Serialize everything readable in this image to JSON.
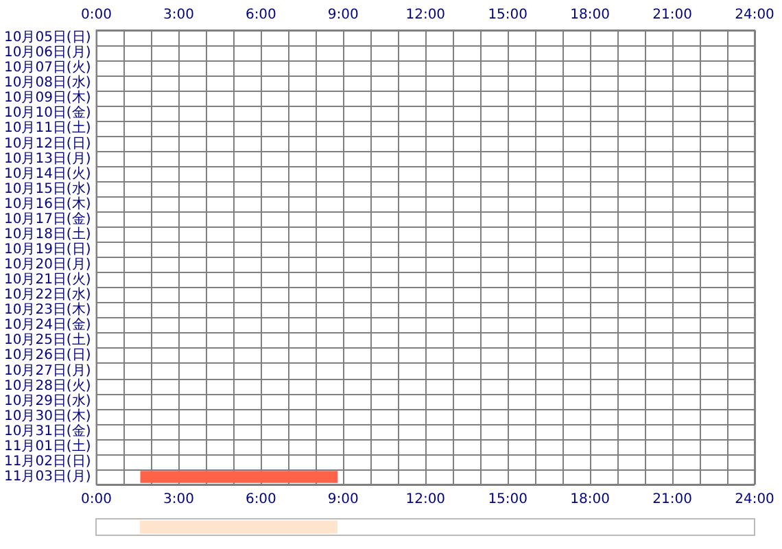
{
  "chart_data": [
    {
      "type": "bar",
      "orientation": "horizontal",
      "grid": true,
      "categories": [
        "10月05日(日)",
        "10月06日(月)",
        "10月07日(火)",
        "10月08日(水)",
        "10月09日(木)",
        "10月10日(金)",
        "10月11日(土)",
        "10月12日(日)",
        "10月13日(月)",
        "10月14日(火)",
        "10月15日(水)",
        "10月16日(木)",
        "10月17日(金)",
        "10月18日(土)",
        "10月19日(日)",
        "10月20日(月)",
        "10月21日(火)",
        "10月22日(水)",
        "10月23日(木)",
        "10月24日(金)",
        "10月25日(土)",
        "10月26日(日)",
        "10月27日(月)",
        "10月28日(火)",
        "10月29日(水)",
        "10月30日(木)",
        "10月31日(金)",
        "11月01日(土)",
        "11月02日(日)",
        "11月03日(月)"
      ],
      "values": [
        null,
        null,
        null,
        null,
        null,
        null,
        null,
        null,
        null,
        null,
        null,
        null,
        null,
        null,
        null,
        null,
        null,
        null,
        null,
        null,
        null,
        null,
        null,
        null,
        null,
        null,
        null,
        null,
        null,
        7.2
      ],
      "base": [
        null,
        null,
        null,
        null,
        null,
        null,
        null,
        null,
        null,
        null,
        null,
        null,
        null,
        null,
        null,
        null,
        null,
        null,
        null,
        null,
        null,
        null,
        null,
        null,
        null,
        null,
        null,
        null,
        null,
        1.6
      ],
      "color": "#ff6347",
      "xlim": [
        0,
        24
      ],
      "xticks": [
        {
          "value": 0,
          "label": "0:00"
        },
        {
          "value": 1,
          "label": null
        },
        {
          "value": 2,
          "label": null
        },
        {
          "value": 3,
          "label": "3:00"
        },
        {
          "value": 4,
          "label": null
        },
        {
          "value": 5,
          "label": null
        },
        {
          "value": 6,
          "label": "6:00"
        },
        {
          "value": 7,
          "label": null
        },
        {
          "value": 8,
          "label": null
        },
        {
          "value": 9,
          "label": "9:00"
        },
        {
          "value": 10,
          "label": null
        },
        {
          "value": 11,
          "label": null
        },
        {
          "value": 12,
          "label": "12:00"
        },
        {
          "value": 13,
          "label": null
        },
        {
          "value": 14,
          "label": null
        },
        {
          "value": 15,
          "label": "15:00"
        },
        {
          "value": 16,
          "label": null
        },
        {
          "value": 17,
          "label": null
        },
        {
          "value": 18,
          "label": "18:00"
        },
        {
          "value": 19,
          "label": null
        },
        {
          "value": 20,
          "label": null
        },
        {
          "value": 21,
          "label": "21:00"
        },
        {
          "value": 22,
          "label": null
        },
        {
          "value": 23,
          "label": null
        },
        {
          "value": 24,
          "label": "24:00"
        }
      ],
      "x2lim": [
        0,
        24
      ],
      "x2ticks": [
        {
          "value": 0,
          "label": "0:00"
        },
        {
          "value": 1,
          "label": null
        },
        {
          "value": 2,
          "label": null
        },
        {
          "value": 3,
          "label": "3:00"
        },
        {
          "value": 4,
          "label": null
        },
        {
          "value": 5,
          "label": null
        },
        {
          "value": 6,
          "label": "6:00"
        },
        {
          "value": 7,
          "label": null
        },
        {
          "value": 8,
          "label": null
        },
        {
          "value": 9,
          "label": "9:00"
        },
        {
          "value": 10,
          "label": null
        },
        {
          "value": 11,
          "label": null
        },
        {
          "value": 12,
          "label": "12:00"
        },
        {
          "value": 13,
          "label": null
        },
        {
          "value": 14,
          "label": null
        },
        {
          "value": 15,
          "label": "15:00"
        },
        {
          "value": 16,
          "label": null
        },
        {
          "value": 17,
          "label": null
        },
        {
          "value": 18,
          "label": "18:00"
        },
        {
          "value": 19,
          "label": null
        },
        {
          "value": 20,
          "label": null
        },
        {
          "value": 21,
          "label": "21:00"
        },
        {
          "value": 22,
          "label": null
        },
        {
          "value": 23,
          "label": null
        },
        {
          "value": 24,
          "label": "24:00"
        }
      ]
    },
    {
      "type": "bar",
      "orientation": "horizontal",
      "categories": [
        null
      ],
      "values": [
        7.2
      ],
      "base": [
        1.6
      ],
      "color": "#ffe4cc",
      "xlim": [
        0,
        24
      ]
    }
  ]
}
